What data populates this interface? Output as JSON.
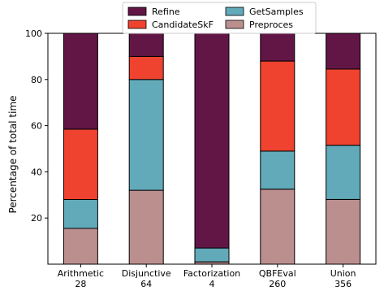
{
  "chart_data": {
    "type": "bar",
    "stacked": true,
    "title": "",
    "xlabel": "",
    "ylabel": "Percentage of total time",
    "ylim": [
      0,
      100
    ],
    "yticks": [
      20,
      40,
      60,
      80,
      100
    ],
    "grid": false,
    "legend_position": "top-center",
    "categories": [
      "Arithmetic",
      "Disjunctive",
      "Factorization",
      "QBFEval",
      "Union"
    ],
    "category_counts": [
      "28",
      "64",
      "4",
      "260",
      "356"
    ],
    "series": [
      {
        "name": "Preproces",
        "color": "#bc8f8f",
        "values": [
          15.5,
          32,
          1,
          32.5,
          28
        ]
      },
      {
        "name": "GetSamples",
        "color": "#62aab9",
        "values": [
          12.5,
          48,
          6,
          16.5,
          23.5
        ]
      },
      {
        "name": "CandidateSkF",
        "color": "#ef4330",
        "values": [
          30.5,
          10,
          0,
          39,
          33
        ]
      },
      {
        "name": "Refine",
        "color": "#621645",
        "values": [
          41.5,
          10,
          93,
          12,
          15.5
        ]
      }
    ],
    "legend_order": [
      "Refine",
      "CandidateSkF",
      "GetSamples",
      "Preproces"
    ]
  }
}
